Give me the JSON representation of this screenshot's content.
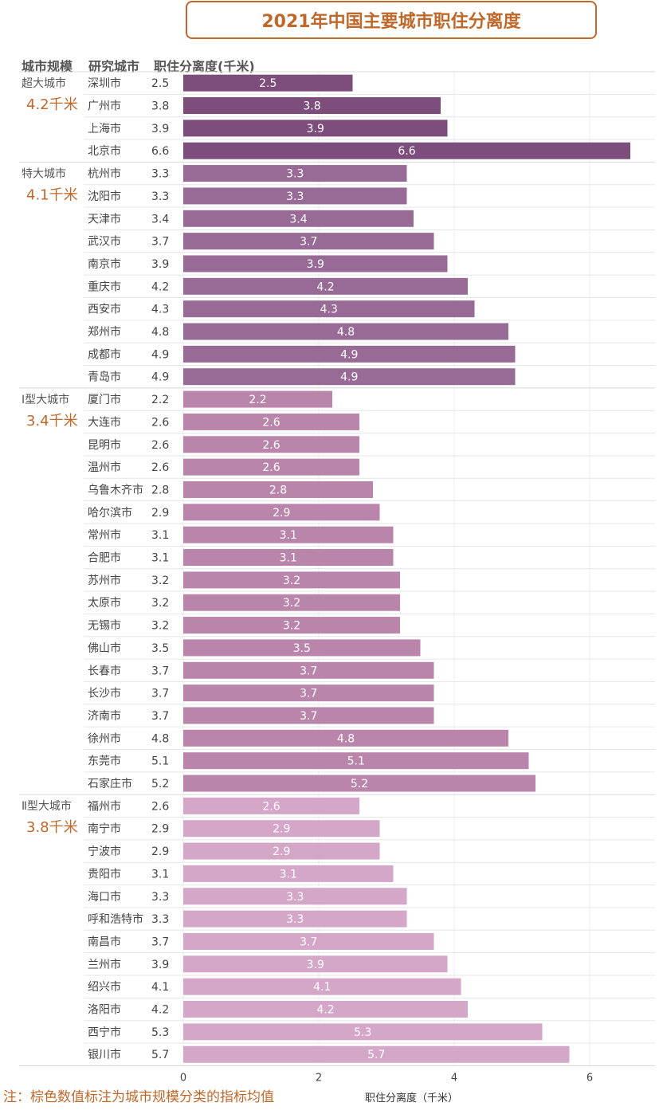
{
  "title": "2021年中国主要城市职住分离度",
  "headers": {
    "scale": "城市规模",
    "city": "研究城市",
    "value": "职住分离度(千米)"
  },
  "footnote": "注：棕色数值标注为城市规模分类的指标均值",
  "colors": {
    "accent": "#c0682a",
    "groups": [
      "#7d4e7c",
      "#986b96",
      "#ba85aa",
      "#d4a6c8"
    ]
  },
  "chart_data": {
    "type": "bar",
    "orientation": "horizontal",
    "xlabel": "职住分离度（千米）",
    "xlim": [
      0,
      7
    ],
    "xticks": [
      0,
      2,
      4,
      6
    ],
    "groups": [
      {
        "name": "超大城市",
        "mean": "4.2千米",
        "cities": [
          "深圳市",
          "广州市",
          "上海市",
          "北京市"
        ],
        "values": [
          2.5,
          3.8,
          3.9,
          6.6
        ]
      },
      {
        "name": "特大城市",
        "mean": "4.1千米",
        "cities": [
          "杭州市",
          "沈阳市",
          "天津市",
          "武汉市",
          "南京市",
          "重庆市",
          "西安市",
          "郑州市",
          "成都市",
          "青岛市"
        ],
        "values": [
          3.3,
          3.3,
          3.4,
          3.7,
          3.9,
          4.2,
          4.3,
          4.8,
          4.9,
          4.9
        ]
      },
      {
        "name": "Ⅰ型大城市",
        "mean": "3.4千米",
        "cities": [
          "厦门市",
          "大连市",
          "昆明市",
          "温州市",
          "乌鲁木齐市",
          "哈尔滨市",
          "常州市",
          "合肥市",
          "苏州市",
          "太原市",
          "无锡市",
          "佛山市",
          "长春市",
          "长沙市",
          "济南市",
          "徐州市",
          "东莞市",
          "石家庄市"
        ],
        "values": [
          2.2,
          2.6,
          2.6,
          2.6,
          2.8,
          2.9,
          3.1,
          3.1,
          3.2,
          3.2,
          3.2,
          3.5,
          3.7,
          3.7,
          3.7,
          4.8,
          5.1,
          5.2
        ]
      },
      {
        "name": "Ⅱ型大城市",
        "mean": "3.8千米",
        "cities": [
          "福州市",
          "南宁市",
          "宁波市",
          "贵阳市",
          "海口市",
          "呼和浩特市",
          "南昌市",
          "兰州市",
          "绍兴市",
          "洛阳市",
          "西宁市",
          "银川市"
        ],
        "values": [
          2.6,
          2.9,
          2.9,
          3.1,
          3.3,
          3.3,
          3.7,
          3.9,
          4.1,
          4.2,
          5.3,
          5.7
        ]
      }
    ]
  }
}
